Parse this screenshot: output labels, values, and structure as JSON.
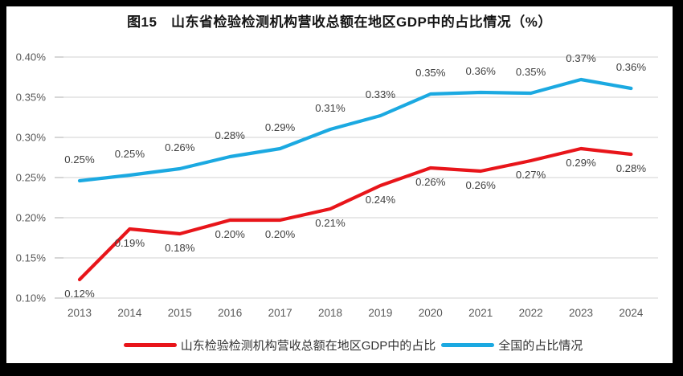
{
  "title": "图15　山东省检验检测机构营收总额在地区GDP中的占比情况（%）",
  "chart_data": {
    "type": "line",
    "title": "图15　山东省检验检测机构营收总额在地区GDP中的占比情况（%）",
    "categories": [
      "2013",
      "2014",
      "2015",
      "2016",
      "2017",
      "2018",
      "2019",
      "2020",
      "2021",
      "2022",
      "2023",
      "2024"
    ],
    "series": [
      {
        "name": "山东检验检测机构营收总额在地区GDP中的占比",
        "color": "#e8151a",
        "values": [
          0.123,
          0.186,
          0.18,
          0.197,
          0.197,
          0.211,
          0.24,
          0.262,
          0.258,
          0.271,
          0.286,
          0.279
        ],
        "point_labels": [
          "0.12%",
          "0.19%",
          "0.18%",
          "0.20%",
          "0.20%",
          "0.21%",
          "0.24%",
          "0.26%",
          "0.26%",
          "0.27%",
          "0.29%",
          "0.28%"
        ],
        "label_position": "below"
      },
      {
        "name": "全国的占比情况",
        "color": "#1ba9e1",
        "values": [
          0.246,
          0.253,
          0.261,
          0.276,
          0.286,
          0.31,
          0.327,
          0.354,
          0.356,
          0.355,
          0.372,
          0.361
        ],
        "point_labels": [
          "0.25%",
          "0.25%",
          "0.26%",
          "0.28%",
          "0.29%",
          "0.31%",
          "0.33%",
          "0.35%",
          "0.36%",
          "0.35%",
          "0.37%",
          "0.36%"
        ],
        "label_position": "above"
      }
    ],
    "ylim": [
      0.1,
      0.4
    ],
    "yticks": [
      "0.10%",
      "0.15%",
      "0.20%",
      "0.25%",
      "0.30%",
      "0.35%",
      "0.40%"
    ],
    "grid": true,
    "legend_position": "bottom",
    "gridline_color": "#d9d9d9",
    "tick_color": "#bfbfbf",
    "axis_text_color": "#595959",
    "data_label_color": "#404040"
  }
}
